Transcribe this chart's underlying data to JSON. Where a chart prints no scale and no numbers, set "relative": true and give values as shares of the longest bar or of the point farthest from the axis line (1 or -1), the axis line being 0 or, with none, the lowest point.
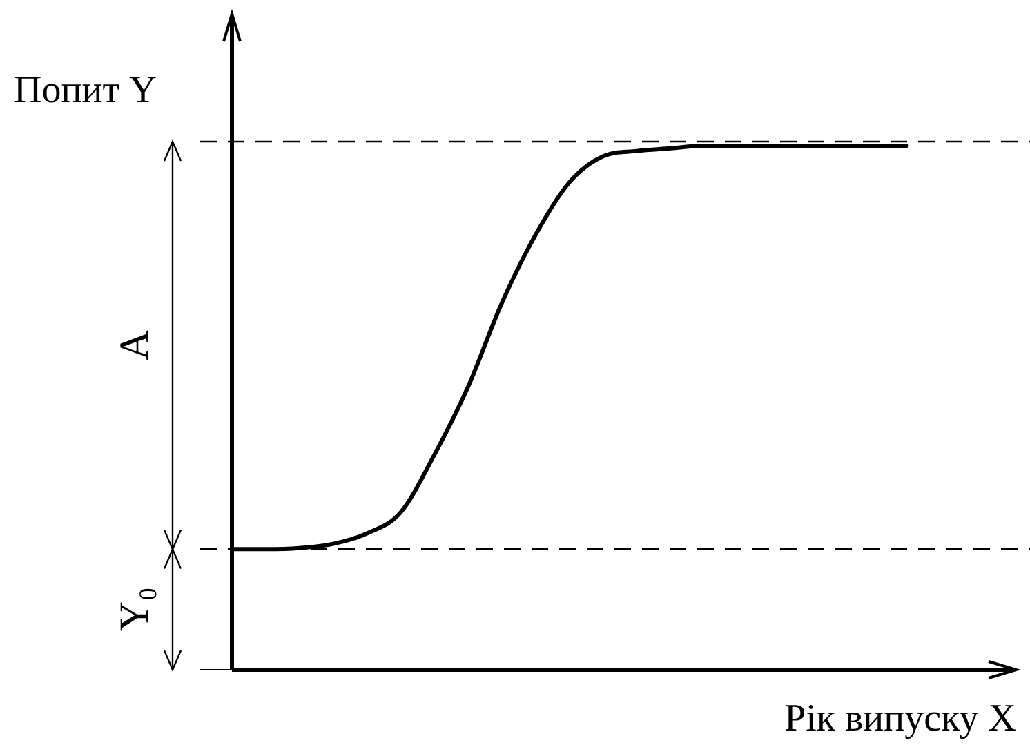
{
  "chart_data": {
    "type": "line",
    "relative": true,
    "xlabel": "Рік випуску X",
    "ylabel": "Попит Y",
    "categories": [
      null,
      null,
      null,
      null,
      null,
      null,
      null,
      null,
      null,
      null,
      null,
      null,
      null,
      null,
      null,
      null,
      null,
      null,
      null,
      null,
      null,
      null,
      null,
      null
    ],
    "series": [
      {
        "color": "#000000",
        "values": [
          0.23,
          0.23,
          0.232,
          0.24,
          0.26,
          0.3,
          0.41,
          0.54,
          0.7,
          0.83,
          0.93,
          0.98,
          0.99,
          0.995,
          1,
          1,
          1,
          1,
          1,
          1,
          1,
          null,
          null,
          null
        ]
      }
    ],
    "ref_lines": [
      {
        "axis": "y",
        "value": 0.23,
        "color": "#000000",
        "line_style": "dashed"
      },
      {
        "axis": "y",
        "value": 1.008,
        "color": "#000000",
        "line_style": "dashed"
      }
    ],
    "annotations": [
      "A",
      "Y₀"
    ],
    "grid": false,
    "legend": false,
    "marker": "none",
    "line_style": "solid"
  }
}
